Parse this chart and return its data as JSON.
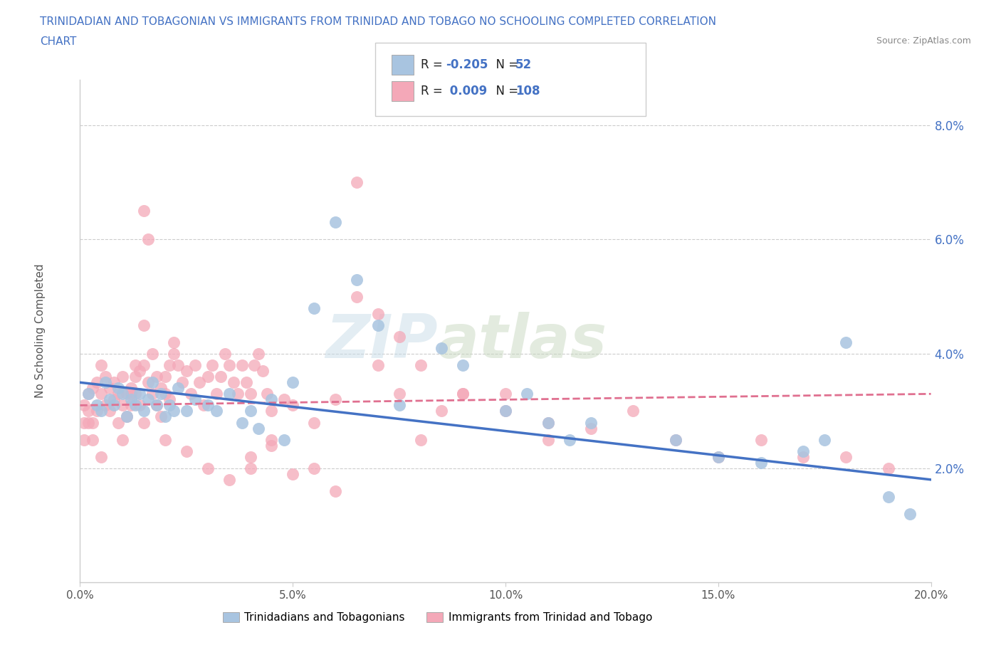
{
  "title_line1": "TRINIDADIAN AND TOBAGONIAN VS IMMIGRANTS FROM TRINIDAD AND TOBAGO NO SCHOOLING COMPLETED CORRELATION",
  "title_line2": "CHART",
  "source": "Source: ZipAtlas.com",
  "ylabel": "No Schooling Completed",
  "xlim": [
    0.0,
    0.2
  ],
  "ylim": [
    0.0,
    0.088
  ],
  "xticks": [
    0.0,
    0.05,
    0.1,
    0.15,
    0.2
  ],
  "xtick_labels": [
    "0.0%",
    "5.0%",
    "10.0%",
    "15.0%",
    "20.0%"
  ],
  "yticks": [
    0.02,
    0.04,
    0.06,
    0.08
  ],
  "ytick_labels": [
    "2.0%",
    "4.0%",
    "6.0%",
    "8.0%"
  ],
  "blue_R": -0.205,
  "blue_N": 52,
  "pink_R": 0.009,
  "pink_N": 108,
  "blue_color": "#a8c4e0",
  "pink_color": "#f4a8b8",
  "blue_line_color": "#4472c4",
  "pink_line_color": "#e07090",
  "legend_label_blue": "Trinidadians and Tobagonians",
  "legend_label_pink": "Immigrants from Trinidad and Tobago",
  "watermark_zip": "ZIP",
  "watermark_atlas": "atlas",
  "background_color": "#ffffff",
  "grid_color": "#cccccc",
  "title_color": "#4472c4",
  "axis_color": "#cccccc",
  "blue_line_start_y": 0.035,
  "blue_line_end_y": 0.018,
  "pink_line_start_y": 0.031,
  "pink_line_end_y": 0.033,
  "blue_scatter_x": [
    0.002,
    0.004,
    0.005,
    0.006,
    0.007,
    0.008,
    0.009,
    0.01,
    0.011,
    0.012,
    0.013,
    0.014,
    0.015,
    0.016,
    0.017,
    0.018,
    0.019,
    0.02,
    0.021,
    0.022,
    0.023,
    0.025,
    0.027,
    0.03,
    0.032,
    0.035,
    0.038,
    0.04,
    0.042,
    0.045,
    0.048,
    0.05,
    0.055,
    0.06,
    0.065,
    0.07,
    0.075,
    0.085,
    0.09,
    0.1,
    0.105,
    0.11,
    0.115,
    0.12,
    0.14,
    0.15,
    0.16,
    0.17,
    0.175,
    0.18,
    0.19,
    0.195
  ],
  "blue_scatter_y": [
    0.033,
    0.031,
    0.03,
    0.035,
    0.032,
    0.031,
    0.034,
    0.033,
    0.029,
    0.032,
    0.031,
    0.033,
    0.03,
    0.032,
    0.035,
    0.031,
    0.033,
    0.029,
    0.031,
    0.03,
    0.034,
    0.03,
    0.032,
    0.031,
    0.03,
    0.033,
    0.028,
    0.03,
    0.027,
    0.032,
    0.025,
    0.035,
    0.048,
    0.063,
    0.053,
    0.045,
    0.031,
    0.041,
    0.038,
    0.03,
    0.033,
    0.028,
    0.025,
    0.028,
    0.025,
    0.022,
    0.021,
    0.023,
    0.025,
    0.042,
    0.015,
    0.012
  ],
  "pink_scatter_x": [
    0.001,
    0.001,
    0.002,
    0.002,
    0.003,
    0.003,
    0.004,
    0.004,
    0.005,
    0.005,
    0.006,
    0.006,
    0.007,
    0.007,
    0.008,
    0.008,
    0.009,
    0.009,
    0.01,
    0.01,
    0.011,
    0.011,
    0.012,
    0.012,
    0.013,
    0.013,
    0.014,
    0.014,
    0.015,
    0.015,
    0.016,
    0.016,
    0.017,
    0.017,
    0.018,
    0.018,
    0.019,
    0.019,
    0.02,
    0.02,
    0.021,
    0.021,
    0.022,
    0.023,
    0.024,
    0.025,
    0.026,
    0.027,
    0.028,
    0.029,
    0.03,
    0.031,
    0.032,
    0.033,
    0.034,
    0.035,
    0.036,
    0.037,
    0.038,
    0.039,
    0.04,
    0.041,
    0.042,
    0.043,
    0.044,
    0.045,
    0.048,
    0.05,
    0.055,
    0.06,
    0.065,
    0.07,
    0.075,
    0.08,
    0.085,
    0.09,
    0.1,
    0.11,
    0.12,
    0.13,
    0.14,
    0.15,
    0.16,
    0.17,
    0.18,
    0.19,
    0.022,
    0.015,
    0.013,
    0.012,
    0.055,
    0.06,
    0.045,
    0.04,
    0.035,
    0.03,
    0.025,
    0.02,
    0.015,
    0.01,
    0.005,
    0.003,
    0.002,
    0.001,
    0.065,
    0.07,
    0.075,
    0.08,
    0.09,
    0.1,
    0.11,
    0.05,
    0.045,
    0.04
  ],
  "pink_scatter_y": [
    0.031,
    0.028,
    0.033,
    0.03,
    0.034,
    0.028,
    0.035,
    0.03,
    0.033,
    0.038,
    0.031,
    0.036,
    0.034,
    0.03,
    0.035,
    0.032,
    0.033,
    0.028,
    0.031,
    0.036,
    0.033,
    0.029,
    0.034,
    0.031,
    0.036,
    0.033,
    0.037,
    0.031,
    0.065,
    0.038,
    0.06,
    0.035,
    0.04,
    0.033,
    0.036,
    0.031,
    0.034,
    0.029,
    0.036,
    0.033,
    0.038,
    0.032,
    0.04,
    0.038,
    0.035,
    0.037,
    0.033,
    0.038,
    0.035,
    0.031,
    0.036,
    0.038,
    0.033,
    0.036,
    0.04,
    0.038,
    0.035,
    0.033,
    0.038,
    0.035,
    0.033,
    0.038,
    0.04,
    0.037,
    0.033,
    0.03,
    0.032,
    0.031,
    0.028,
    0.032,
    0.07,
    0.038,
    0.033,
    0.025,
    0.03,
    0.033,
    0.033,
    0.028,
    0.027,
    0.03,
    0.025,
    0.022,
    0.025,
    0.022,
    0.022,
    0.02,
    0.042,
    0.045,
    0.038,
    0.033,
    0.02,
    0.016,
    0.025,
    0.022,
    0.018,
    0.02,
    0.023,
    0.025,
    0.028,
    0.025,
    0.022,
    0.025,
    0.028,
    0.025,
    0.05,
    0.047,
    0.043,
    0.038,
    0.033,
    0.03,
    0.025,
    0.019,
    0.024,
    0.02
  ]
}
